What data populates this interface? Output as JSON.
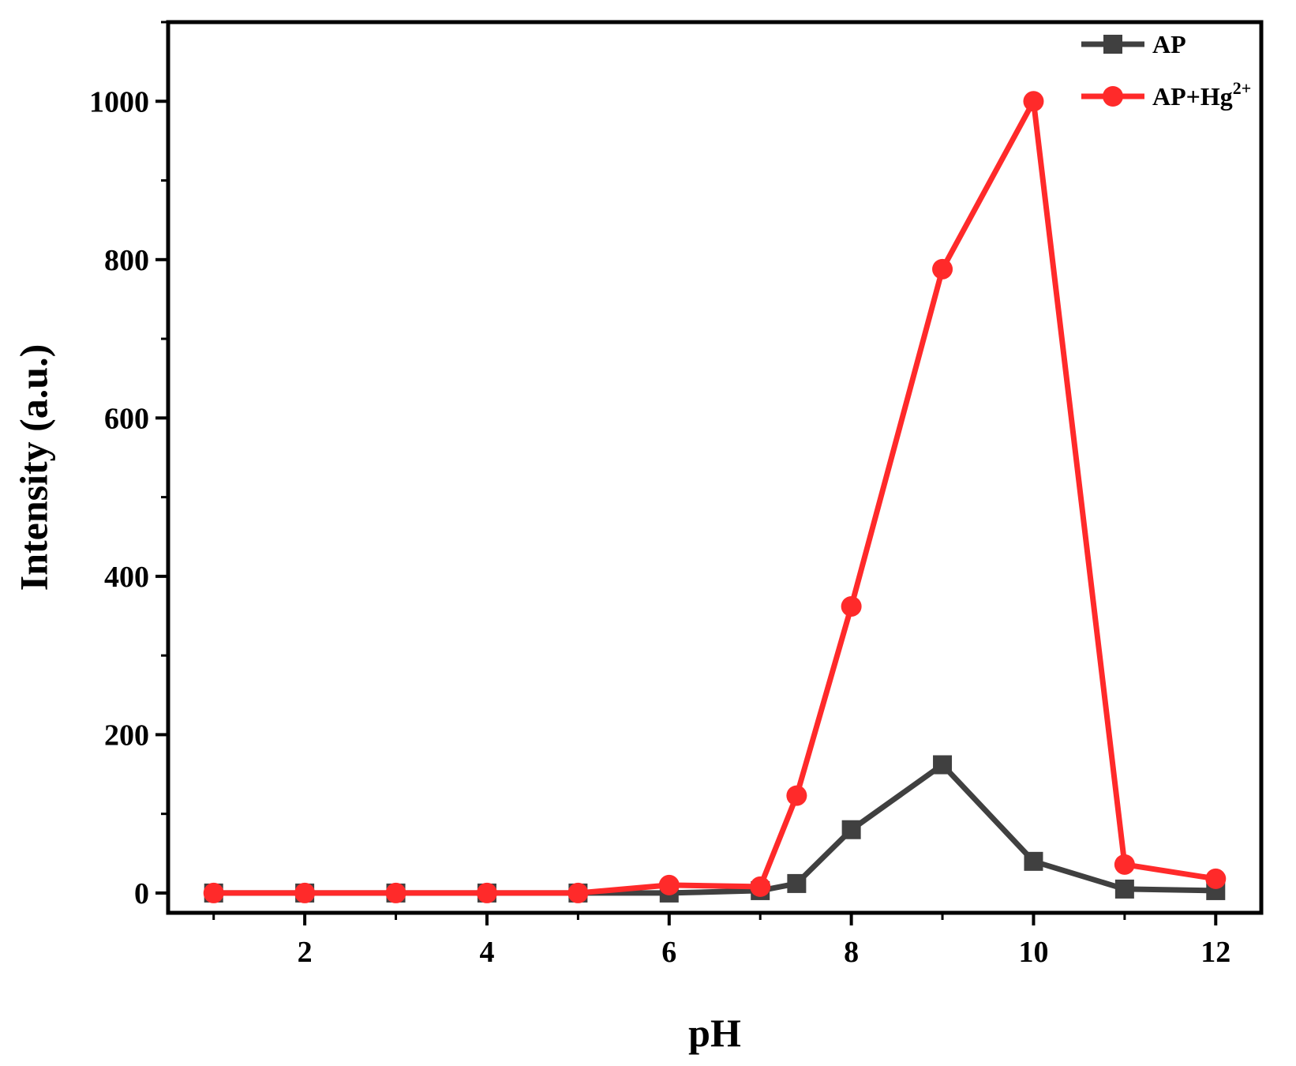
{
  "chart_data": {
    "type": "line",
    "title": "",
    "xlabel": "pH",
    "ylabel": "Intensity (a.u.)",
    "xlim": [
      0.5,
      12.5
    ],
    "ylim": [
      -25,
      1100
    ],
    "xticks": [
      2,
      4,
      6,
      8,
      10,
      12
    ],
    "xtick_labels": [
      "2",
      "4",
      "6",
      "8",
      "10",
      "12"
    ],
    "yticks": [
      0,
      200,
      400,
      600,
      800,
      1000
    ],
    "ytick_labels": [
      "0",
      "200",
      "400",
      "600",
      "800",
      "1000"
    ],
    "grid": false,
    "legend_position": "top-right",
    "series": [
      {
        "name": "AP",
        "legend_base": "AP",
        "legend_sup": "",
        "color": "#404040",
        "marker": "square",
        "x": [
          1,
          2,
          3,
          4,
          5,
          6,
          7,
          7.4,
          8,
          9,
          10,
          11,
          12
        ],
        "y": [
          0,
          0,
          0,
          0,
          0,
          0,
          3,
          12,
          80,
          162,
          40,
          5,
          3
        ]
      },
      {
        "name": "AP+Hg2+",
        "legend_base": "AP+Hg",
        "legend_sup": "2+",
        "color": "#ff2a2a",
        "marker": "circle",
        "x": [
          1,
          2,
          3,
          4,
          5,
          6,
          7,
          7.4,
          8,
          9,
          10,
          11,
          12
        ],
        "y": [
          0,
          0,
          0,
          0,
          0,
          10,
          8,
          123,
          362,
          788,
          1000,
          36,
          18
        ]
      }
    ]
  }
}
